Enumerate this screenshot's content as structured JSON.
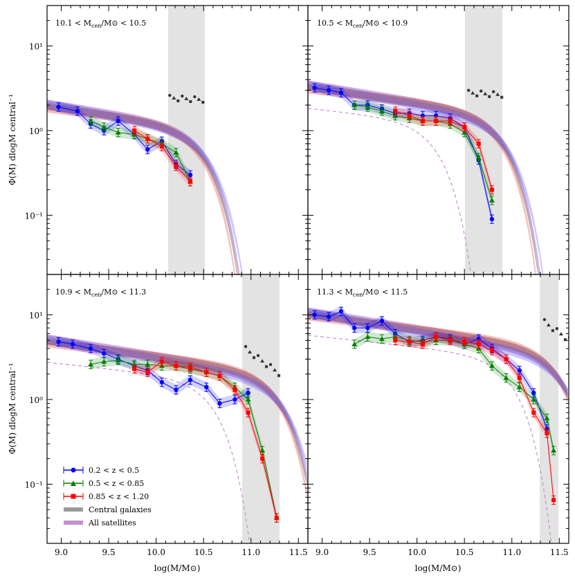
{
  "figure": {
    "ylabel": "Φ(M) dlogM central⁻¹",
    "xlabel": "log(M/M⊙)",
    "legend": {
      "position": "lower-left of bottom-left panel",
      "entries": [
        {
          "label": "0.2  < z <  0.5",
          "color": "#0000ff",
          "marker": "circle",
          "kind": "errorbar"
        },
        {
          "label": "0.5  < z <  0.85",
          "color": "#008000",
          "marker": "triangle",
          "kind": "errorbar"
        },
        {
          "label": "0.85  < z <  1.20",
          "color": "#ff0000",
          "marker": "square",
          "kind": "errorbar"
        },
        {
          "label": "Central galaxies",
          "color": "#9a9a9a",
          "kind": "band"
        },
        {
          "label": "All satellites",
          "color": "#c48fd0",
          "kind": "band"
        }
      ]
    }
  },
  "chart_data": [
    {
      "type": "line",
      "title": "10.1 < Mcen/M⊙ < 10.5",
      "title_parts": {
        "lo": "10.1",
        "hi": "10.5"
      },
      "xlabel": "",
      "ylabel": "Φ(M) dlogM central⁻¹",
      "xlim": [
        8.85,
        11.6
      ],
      "ylim": [
        0.02,
        30
      ],
      "yscale": "log",
      "xticks": [],
      "yticks": [
        "10¹",
        "10⁰",
        "10⁻¹"
      ],
      "shaded_xrange": [
        10.1,
        10.5
      ],
      "series": [
        {
          "name": "0.2 < z < 0.5",
          "x": [
            8.97,
            9.17,
            9.31,
            9.45,
            9.6,
            9.77,
            9.91,
            10.06,
            10.21,
            10.36
          ],
          "y": [
            1.9,
            1.7,
            1.2,
            1.0,
            1.3,
            0.9,
            0.6,
            0.75,
            0.4,
            0.3
          ]
        },
        {
          "name": "0.5 < z < 0.85",
          "x": [
            9.31,
            9.45,
            9.6,
            9.77,
            9.91,
            10.06,
            10.21,
            10.36
          ],
          "y": [
            1.3,
            1.1,
            0.95,
            0.9,
            0.8,
            0.7,
            0.55,
            0.25
          ]
        },
        {
          "name": "0.85 < z < 1.20",
          "x": [
            9.77,
            9.91,
            10.06,
            10.21,
            10.36
          ],
          "y": [
            1.0,
            0.8,
            0.65,
            0.38,
            0.25
          ]
        }
      ]
    },
    {
      "type": "line",
      "title": "10.5 < Mcen/M⊙ < 10.9",
      "title_parts": {
        "lo": "10.5",
        "hi": "10.9"
      },
      "xlabel": "",
      "ylabel": "",
      "xlim": [
        8.85,
        11.6
      ],
      "ylim": [
        0.02,
        30
      ],
      "yscale": "log",
      "xticks": [],
      "yticks": [],
      "shaded_xrange": [
        10.5,
        10.9
      ],
      "series": [
        {
          "name": "0.2 < z < 0.5",
          "x": [
            8.92,
            9.07,
            9.2,
            9.34,
            9.48,
            9.63,
            9.77,
            9.92,
            10.06,
            10.2,
            10.35,
            10.5,
            10.65,
            10.79
          ],
          "y": [
            3.2,
            3.0,
            2.8,
            2.0,
            2.0,
            1.8,
            1.6,
            1.6,
            1.5,
            1.5,
            1.4,
            1.1,
            0.45,
            0.09
          ]
        },
        {
          "name": "0.5 < z < 0.85",
          "x": [
            9.34,
            9.48,
            9.63,
            9.77,
            9.92,
            10.06,
            10.2,
            10.35,
            10.5,
            10.65,
            10.79
          ],
          "y": [
            2.0,
            1.9,
            1.7,
            1.5,
            1.4,
            1.3,
            1.3,
            1.2,
            0.95,
            0.48,
            0.15
          ]
        },
        {
          "name": "0.85 < z < 1.20",
          "x": [
            9.77,
            9.92,
            10.06,
            10.2,
            10.35,
            10.5,
            10.65,
            10.79
          ],
          "y": [
            1.7,
            1.5,
            1.3,
            1.3,
            1.3,
            1.1,
            0.7,
            0.2
          ]
        }
      ]
    },
    {
      "type": "line",
      "title": "10.9 < Mcen/M⊙ < 11.3",
      "title_parts": {
        "lo": "10.9",
        "hi": "11.3"
      },
      "xlabel": "log(M/M⊙)",
      "ylabel": "Φ(M) dlogM central⁻¹",
      "xlim": [
        8.85,
        11.6
      ],
      "ylim": [
        0.02,
        30
      ],
      "yscale": "log",
      "xticks": [
        "9.0",
        "9.5",
        "10.0",
        "10.5",
        "11.0",
        "11.5"
      ],
      "yticks": [
        "10¹",
        "10⁰",
        "10⁻¹"
      ],
      "shaded_xrange": [
        10.9,
        11.3
      ],
      "series": [
        {
          "name": "0.2 < z < 0.5",
          "x": [
            8.97,
            9.12,
            9.31,
            9.45,
            9.6,
            9.77,
            9.91,
            10.06,
            10.21,
            10.36,
            10.53,
            10.67,
            10.83,
            10.97
          ],
          "y": [
            4.8,
            4.5,
            4.0,
            3.5,
            3.0,
            2.5,
            2.2,
            1.6,
            1.3,
            1.7,
            1.4,
            0.9,
            1.0,
            1.2
          ]
        },
        {
          "name": "0.5 < z < 0.85",
          "x": [
            9.31,
            9.45,
            9.6,
            9.77,
            9.91,
            10.06,
            10.21,
            10.36,
            10.53,
            10.67,
            10.83,
            10.97,
            11.12,
            11.27
          ],
          "y": [
            2.6,
            2.8,
            2.9,
            2.6,
            2.6,
            2.5,
            2.5,
            2.3,
            2.1,
            1.9,
            1.4,
            1.0,
            0.25,
            0.04
          ]
        },
        {
          "name": "0.85 < z < 1.20",
          "x": [
            9.77,
            9.91,
            10.06,
            10.21,
            10.36,
            10.53,
            10.67,
            10.83,
            10.97,
            11.12,
            11.27
          ],
          "y": [
            2.3,
            2.1,
            2.8,
            2.5,
            2.4,
            2.1,
            1.9,
            1.3,
            0.7,
            0.2,
            0.04
          ]
        }
      ]
    },
    {
      "type": "line",
      "title": "11.3 < Mcen/M⊙ < 11.5",
      "title_parts": {
        "lo": "11.3",
        "hi": "11.5"
      },
      "xlabel": "log(M/M⊙)",
      "ylabel": "",
      "xlim": [
        8.85,
        11.6
      ],
      "ylim": [
        0.02,
        30
      ],
      "yscale": "log",
      "xticks": [
        "9.0",
        "9.5",
        "10.0",
        "10.5",
        "11.0",
        "11.5"
      ],
      "yticks": [],
      "shaded_xrange": [
        11.3,
        11.5
      ],
      "series": [
        {
          "name": "0.2 < z < 0.5",
          "x": [
            8.92,
            9.07,
            9.2,
            9.34,
            9.48,
            9.63,
            9.77,
            9.92,
            10.06,
            10.2,
            10.35,
            10.5,
            10.65,
            10.79,
            10.94,
            11.08,
            11.23,
            11.37
          ],
          "y": [
            10.0,
            9.5,
            11.0,
            7.0,
            7.0,
            8.5,
            6.0,
            4.8,
            5.0,
            5.5,
            5.2,
            4.5,
            5.2,
            4.0,
            3.0,
            2.2,
            1.2,
            0.45
          ]
        },
        {
          "name": "0.5 < z < 0.85",
          "x": [
            9.34,
            9.48,
            9.63,
            9.77,
            9.92,
            10.06,
            10.2,
            10.35,
            10.5,
            10.65,
            10.79,
            10.94,
            11.08,
            11.23,
            11.37,
            11.44
          ],
          "y": [
            4.5,
            5.5,
            5.2,
            5.5,
            5.0,
            4.8,
            5.0,
            5.0,
            4.5,
            4.0,
            2.5,
            1.8,
            1.4,
            1.0,
            0.6,
            0.25
          ]
        },
        {
          "name": "0.85 < z < 1.20",
          "x": [
            9.77,
            9.92,
            10.06,
            10.2,
            10.35,
            10.5,
            10.65,
            10.79,
            10.94,
            11.08,
            11.23,
            11.37,
            11.44
          ],
          "y": [
            5.0,
            4.8,
            4.5,
            5.5,
            5.0,
            4.8,
            4.5,
            3.8,
            3.0,
            1.8,
            0.7,
            0.4,
            0.065
          ]
        }
      ]
    }
  ]
}
